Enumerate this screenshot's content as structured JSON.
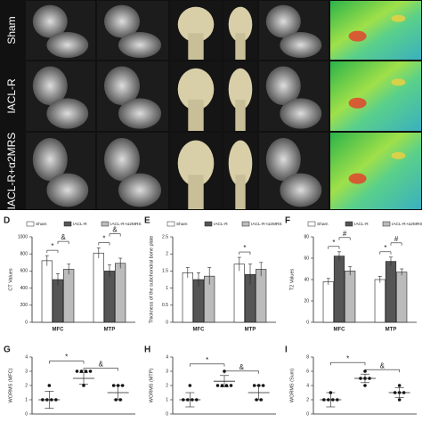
{
  "image_panel": {
    "row_labels": [
      "Sham",
      "IACL-R",
      "IACL-R+α2MRS"
    ]
  },
  "chart_data": [
    {
      "type": "bar",
      "label": "D",
      "ylabel": "CT  Values",
      "categories": [
        "MFC",
        "MTP"
      ],
      "series": [
        {
          "name": "Sham",
          "color": "#ffffff",
          "values": [
            720,
            810
          ],
          "errors": [
            60,
            60
          ]
        },
        {
          "name": "IACL-R",
          "color": "#555555",
          "values": [
            500,
            600
          ],
          "errors": [
            70,
            70
          ]
        },
        {
          "name": "IACL-R+α2MRS",
          "color": "#bbbbbb",
          "values": [
            620,
            690
          ],
          "errors": [
            60,
            60
          ]
        }
      ],
      "ylim": [
        0,
        1000
      ],
      "yticks": [
        0,
        200,
        400,
        600,
        800,
        1000
      ],
      "annotations": [
        [
          "*",
          "&"
        ],
        [
          "*",
          "&"
        ]
      ]
    },
    {
      "type": "bar",
      "label": "E",
      "ylabel": "Thickness of the subchondral bone plate",
      "categories": [
        "MFC",
        "MTP"
      ],
      "series": [
        {
          "name": "Sham",
          "color": "#ffffff",
          "values": [
            1.45,
            1.7
          ],
          "errors": [
            0.15,
            0.2
          ]
        },
        {
          "name": "IACL-R",
          "color": "#555555",
          "values": [
            1.25,
            1.4
          ],
          "errors": [
            0.2,
            0.3
          ]
        },
        {
          "name": "IACL-R+α2MRS",
          "color": "#bbbbbb",
          "values": [
            1.35,
            1.55
          ],
          "errors": [
            0.25,
            0.2
          ]
        }
      ],
      "ylim": [
        0,
        2.5
      ],
      "yticks": [
        0,
        0.5,
        1,
        1.5,
        2,
        2.5
      ],
      "annotations": [
        [],
        [
          "*"
        ]
      ]
    },
    {
      "type": "bar",
      "label": "F",
      "ylabel": "T2  Values",
      "categories": [
        "MFC",
        "MTP"
      ],
      "series": [
        {
          "name": "Sham",
          "color": "#ffffff",
          "values": [
            38,
            40
          ],
          "errors": [
            3,
            3
          ]
        },
        {
          "name": "IACL-R",
          "color": "#555555",
          "values": [
            62,
            57
          ],
          "errors": [
            4,
            4
          ]
        },
        {
          "name": "IACL-R+α2MRS",
          "color": "#bbbbbb",
          "values": [
            48,
            47
          ],
          "errors": [
            4,
            3
          ]
        }
      ],
      "ylim": [
        0,
        80
      ],
      "yticks": [
        0,
        20,
        40,
        60,
        80
      ],
      "annotations": [
        [
          "*",
          "#"
        ],
        [
          "*",
          "#"
        ]
      ]
    },
    {
      "type": "dot",
      "label": "G",
      "ylabel": "WORMS (MFC)",
      "groups": [
        [
          1,
          1,
          1,
          1,
          2
        ],
        [
          2,
          3,
          3,
          3,
          3
        ],
        [
          1,
          1,
          2,
          2,
          2
        ]
      ],
      "means": [
        1,
        2.5,
        1.5
      ],
      "errors": [
        0.6,
        0.4,
        0.5
      ],
      "ylim": [
        0,
        4
      ],
      "yticks": [
        0,
        1,
        2,
        3,
        4
      ],
      "annotations": [
        "*",
        "&"
      ]
    },
    {
      "type": "dot",
      "label": "H",
      "ylabel": "WORMS (MTP)",
      "groups": [
        [
          1,
          1,
          1,
          1,
          2
        ],
        [
          2,
          2,
          2,
          2,
          3
        ],
        [
          1,
          1,
          2,
          2,
          2
        ]
      ],
      "means": [
        1,
        2.3,
        1.5
      ],
      "errors": [
        0.5,
        0.4,
        0.5
      ],
      "ylim": [
        0,
        4
      ],
      "yticks": [
        0,
        1,
        2,
        3,
        4
      ],
      "annotations": [
        "*",
        "&"
      ]
    },
    {
      "type": "dot",
      "label": "I",
      "ylabel": "WORMS (Sum)",
      "groups": [
        [
          2,
          2,
          2,
          2,
          3
        ],
        [
          4,
          5,
          5,
          5,
          6
        ],
        [
          2,
          3,
          3,
          3,
          4
        ]
      ],
      "means": [
        2,
        5,
        3
      ],
      "errors": [
        1,
        0.6,
        0.7
      ],
      "ylim": [
        0,
        8
      ],
      "yticks": [
        0,
        2,
        4,
        6,
        8
      ],
      "annotations": [
        "*",
        "&"
      ]
    }
  ]
}
